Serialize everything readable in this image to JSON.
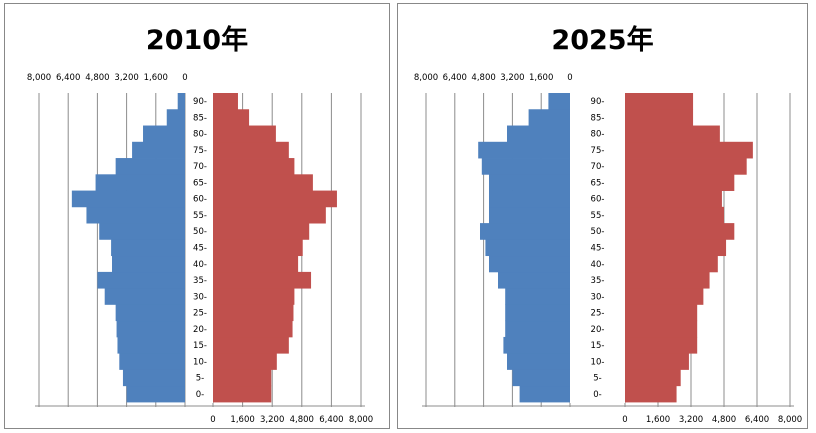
{
  "chart_data": [
    {
      "type": "bar",
      "title": "2010年",
      "age_labels": [
        "0-",
        "5-",
        "10-",
        "15-",
        "20-",
        "25-",
        "30-",
        "35-",
        "40-",
        "45-",
        "50-",
        "55-",
        "60-",
        "65-",
        "70-",
        "75-",
        "80-",
        "85-",
        "90-"
      ],
      "left_ticks": [
        "8,000",
        "6,400",
        "4,800",
        "3,200",
        "1,600",
        "0"
      ],
      "right_ticks": [
        "0",
        "1,600",
        "3,200",
        "4,800",
        "6,400",
        "8,000"
      ],
      "xlim": [
        0,
        8000
      ],
      "series": [
        {
          "color": "#4f81bd",
          "side": "left",
          "values": [
            3200,
            3400,
            3600,
            3700,
            3750,
            3800,
            4400,
            4800,
            4000,
            4050,
            4700,
            5400,
            6200,
            4900,
            3800,
            2900,
            2300,
            1000,
            400
          ]
        },
        {
          "color": "#c0504d",
          "side": "right",
          "values": [
            3150,
            3150,
            3450,
            4100,
            4300,
            4350,
            4400,
            5300,
            4600,
            4850,
            5200,
            6100,
            6700,
            5400,
            4400,
            4100,
            3400,
            1950,
            1350
          ]
        }
      ]
    },
    {
      "type": "bar",
      "title": "2025年",
      "age_labels": [
        "0-",
        "5-",
        "10-",
        "15-",
        "20-",
        "25-",
        "30-",
        "35-",
        "40-",
        "45-",
        "50-",
        "55-",
        "60-",
        "65-",
        "70-",
        "75-",
        "80-",
        "85-",
        "90-"
      ],
      "left_ticks": [
        "8,000",
        "6,400",
        "4,800",
        "3,200",
        "1,600",
        "0"
      ],
      "right_ticks": [
        "0",
        "1,600",
        "3,200",
        "4,800",
        "6,400",
        "8,000"
      ],
      "xlim": [
        0,
        8000
      ],
      "series": [
        {
          "color": "#4f81bd",
          "side": "left",
          "values": [
            2800,
            3200,
            3500,
            3700,
            3600,
            3600,
            3600,
            4000,
            4500,
            4700,
            5000,
            4500,
            4500,
            4500,
            4900,
            5100,
            3500,
            2300,
            1200
          ]
        },
        {
          "color": "#c0504d",
          "side": "right",
          "values": [
            2500,
            2700,
            3100,
            3500,
            3500,
            3500,
            3800,
            4100,
            4500,
            4900,
            5300,
            4800,
            4700,
            5300,
            5900,
            6200,
            4600,
            3300,
            3300
          ]
        }
      ]
    }
  ]
}
